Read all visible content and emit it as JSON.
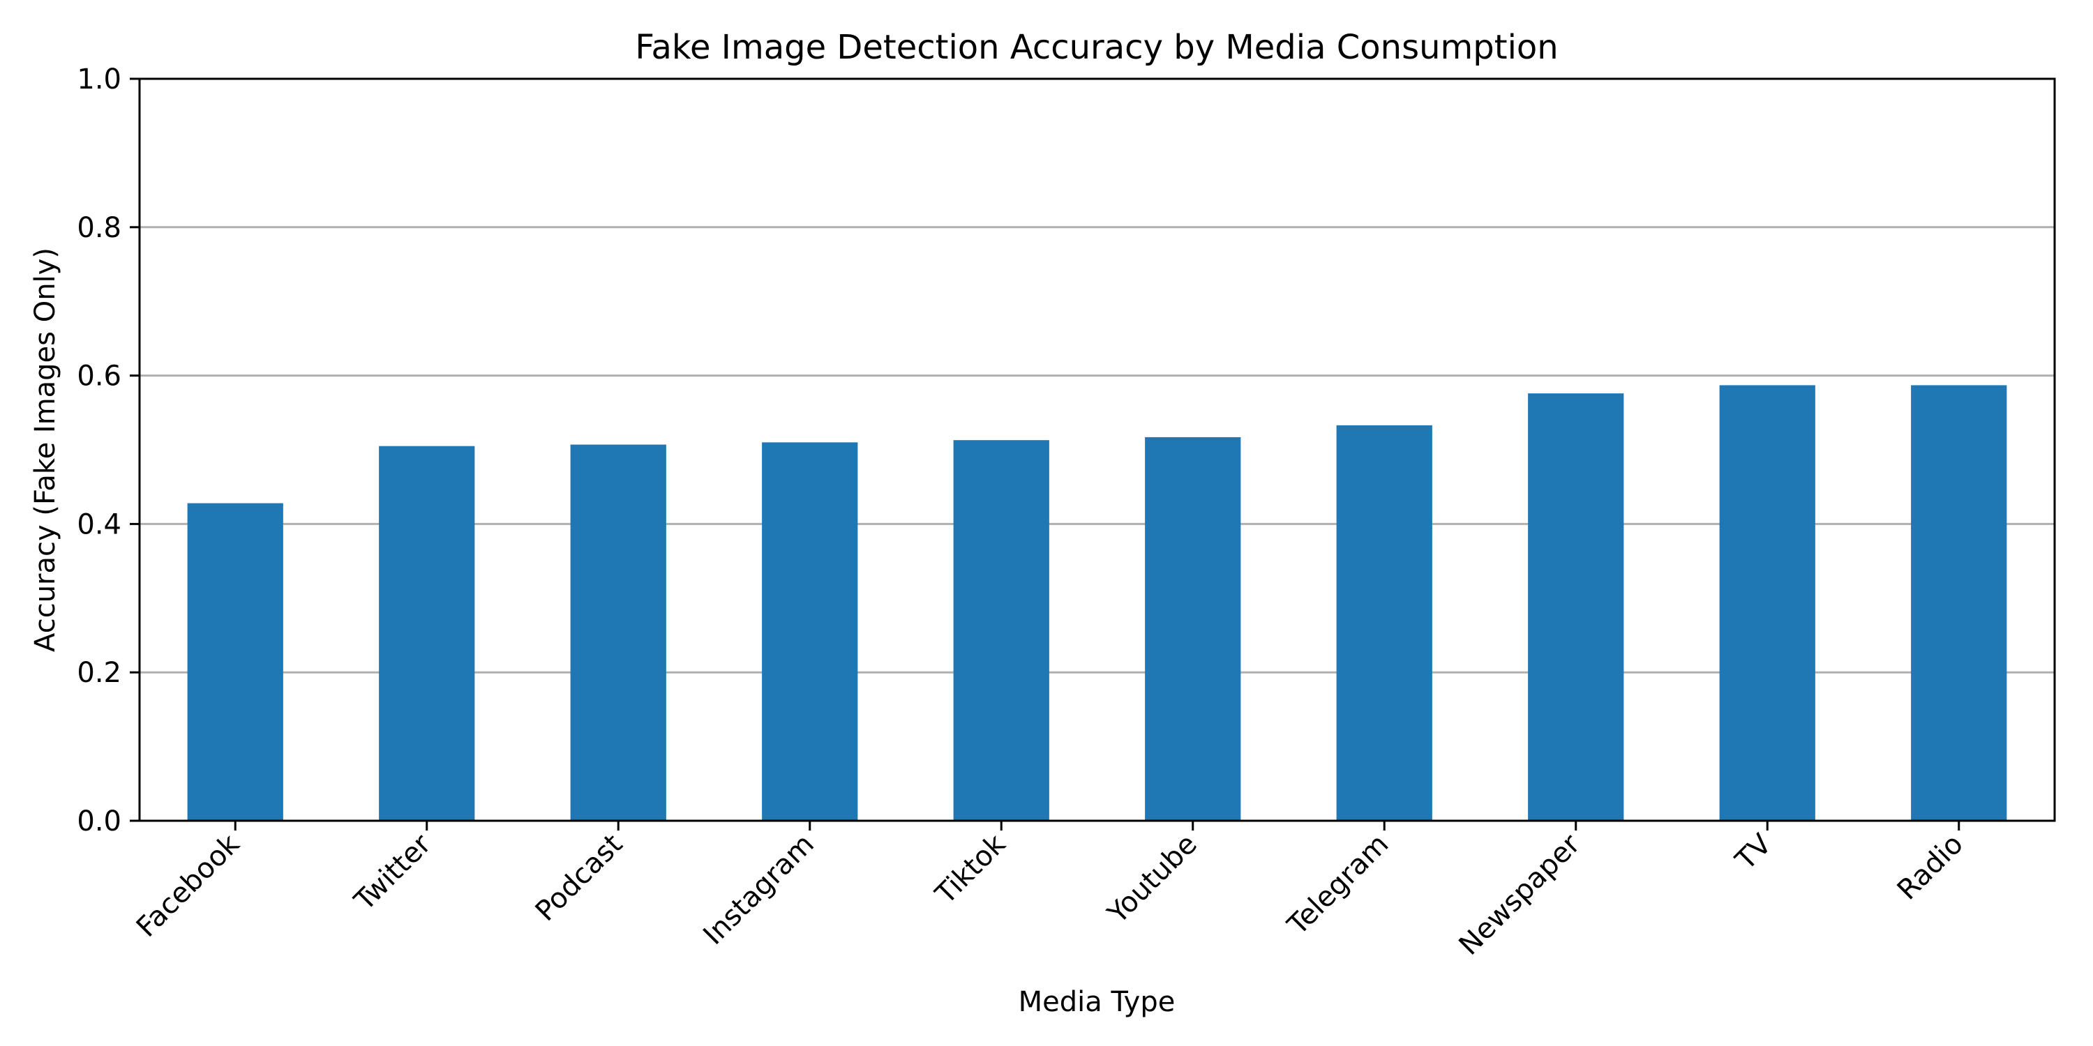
{
  "chart_data": {
    "type": "bar",
    "title": "Fake Image Detection Accuracy by Media Consumption",
    "xlabel": "Media Type",
    "ylabel": "Accuracy (Fake Images Only)",
    "categories": [
      "Facebook",
      "Twitter",
      "Podcast",
      "Instagram",
      "Tiktok",
      "Youtube",
      "Telegram",
      "Newspaper",
      "TV",
      "Radio"
    ],
    "values": [
      0.428,
      0.505,
      0.507,
      0.51,
      0.513,
      0.517,
      0.533,
      0.576,
      0.587,
      0.587
    ],
    "ylim": [
      0,
      1.0
    ],
    "yticks": [
      "0.0",
      "0.2",
      "0.4",
      "0.6",
      "0.8",
      "1.0"
    ],
    "grid": "y",
    "bar_color": "#1f77b4",
    "grid_color": "#b0b0b0",
    "axis_color": "#000000"
  }
}
